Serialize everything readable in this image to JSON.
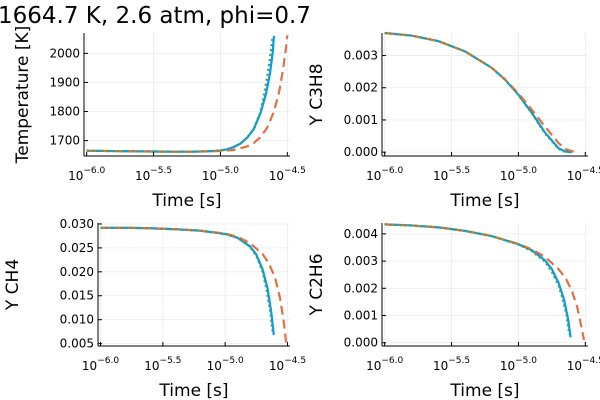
{
  "title": "1664.7 K, 2.6 atm, phi=0.7",
  "colors": {
    "series_1": "#009AFA",
    "series_2": "#E26F46",
    "series_3": "#3EA44E",
    "grid": "#ebebeb"
  },
  "chart_data": [
    {
      "type": "line",
      "xlabel": "Time [s]",
      "ylabel": "Temperature [K]",
      "xscale": "log10",
      "xlim": [
        -6.02,
        -4.48
      ],
      "ylim": [
        1647,
        2070
      ],
      "xticks": [
        {
          "base": "10",
          "exp": "−6.0"
        },
        {
          "base": "10",
          "exp": "−5.5"
        },
        {
          "base": "10",
          "exp": "−5.0"
        },
        {
          "base": "10",
          "exp": "−4.5"
        }
      ],
      "xtick_values": [
        -6.0,
        -5.5,
        -5.0,
        -4.5
      ],
      "yticks": [
        "1700",
        "1800",
        "1900",
        "2000"
      ],
      "ytick_values": [
        1700,
        1800,
        1900,
        2000
      ],
      "legend": "none",
      "grid": true,
      "series": [
        {
          "style": "solid",
          "x": [
            -6.0,
            -5.8,
            -5.6,
            -5.4,
            -5.2,
            -5.1,
            -5.0,
            -4.95,
            -4.9,
            -4.85,
            -4.8,
            -4.75,
            -4.7,
            -4.66,
            -4.63,
            -4.61,
            -4.6
          ],
          "y": [
            1665,
            1664,
            1663,
            1662,
            1662,
            1663,
            1666,
            1670,
            1678,
            1690,
            1710,
            1740,
            1795,
            1860,
            1930,
            2000,
            2060
          ]
        },
        {
          "style": "dash",
          "x": [
            -6.0,
            -5.8,
            -5.6,
            -5.4,
            -5.2,
            -5.0,
            -4.9,
            -4.8,
            -4.75,
            -4.7,
            -4.65,
            -4.6,
            -4.56,
            -4.53,
            -4.51,
            -4.5
          ],
          "y": [
            1665,
            1664,
            1663,
            1662,
            1662,
            1664,
            1668,
            1680,
            1692,
            1712,
            1745,
            1800,
            1870,
            1950,
            2020,
            2062
          ]
        },
        {
          "style": "dot",
          "x": [
            -6.0,
            -5.8,
            -5.6,
            -5.4,
            -5.2,
            -5.1,
            -5.0,
            -4.95,
            -4.9,
            -4.85,
            -4.8,
            -4.75,
            -4.7,
            -4.67,
            -4.64,
            -4.62,
            -4.61
          ],
          "y": [
            1665,
            1664,
            1663,
            1662,
            1662,
            1663,
            1666,
            1670,
            1678,
            1690,
            1710,
            1742,
            1800,
            1870,
            1950,
            2020,
            2058
          ]
        }
      ]
    },
    {
      "type": "line",
      "xlabel": "Time [s]",
      "ylabel": "Y C3H8",
      "xscale": "log10",
      "xlim": [
        -6.02,
        -4.48
      ],
      "ylim": [
        -0.00012,
        0.0037
      ],
      "xticks": [
        {
          "base": "10",
          "exp": "−6.0"
        },
        {
          "base": "10",
          "exp": "−5.5"
        },
        {
          "base": "10",
          "exp": "−5.0"
        },
        {
          "base": "10",
          "exp": "−4.5"
        }
      ],
      "xtick_values": [
        -6.0,
        -5.5,
        -5.0,
        -4.5
      ],
      "yticks": [
        "0.000",
        "0.001",
        "0.002",
        "0.003"
      ],
      "ytick_values": [
        0.0,
        0.001,
        0.002,
        0.003
      ],
      "legend": "none",
      "grid": true,
      "series": [
        {
          "style": "solid",
          "x": [
            -6.0,
            -5.8,
            -5.6,
            -5.4,
            -5.2,
            -5.1,
            -5.0,
            -4.9,
            -4.8,
            -4.7,
            -4.65,
            -4.6
          ],
          "y": [
            0.0037,
            0.00362,
            0.00345,
            0.00313,
            0.00262,
            0.00225,
            0.00178,
            0.00122,
            0.0006,
            0.00012,
            2e-05,
            0.0
          ]
        },
        {
          "style": "dash",
          "x": [
            -6.0,
            -5.8,
            -5.6,
            -5.4,
            -5.2,
            -5.1,
            -5.0,
            -4.9,
            -4.8,
            -4.7,
            -4.65,
            -4.6,
            -4.55
          ],
          "y": [
            0.0037,
            0.00362,
            0.00345,
            0.00313,
            0.00262,
            0.00226,
            0.00182,
            0.00132,
            0.00078,
            0.00028,
            0.0001,
            3e-05,
            0.0
          ]
        },
        {
          "style": "dot",
          "x": [
            -6.0,
            -5.8,
            -5.6,
            -5.4,
            -5.2,
            -5.1,
            -5.0,
            -4.9,
            -4.8,
            -4.7,
            -4.65,
            -4.62
          ],
          "y": [
            0.0037,
            0.00362,
            0.00345,
            0.00313,
            0.00262,
            0.00225,
            0.00178,
            0.0012,
            0.00057,
            0.0001,
            1e-05,
            0.0
          ]
        }
      ]
    },
    {
      "type": "line",
      "xlabel": "Time [s]",
      "ylabel": "Y CH4",
      "xscale": "log10",
      "xlim": [
        -6.02,
        -4.48
      ],
      "ylim": [
        0.0045,
        0.0302
      ],
      "xticks": [
        {
          "base": "10",
          "exp": "−6.0"
        },
        {
          "base": "10",
          "exp": "−5.5"
        },
        {
          "base": "10",
          "exp": "−5.0"
        },
        {
          "base": "10",
          "exp": "−4.5"
        }
      ],
      "xtick_values": [
        -6.0,
        -5.5,
        -5.0,
        -4.5
      ],
      "yticks": [
        "0.005",
        "0.010",
        "0.015",
        "0.020",
        "0.025",
        "0.030"
      ],
      "ytick_values": [
        0.005,
        0.01,
        0.015,
        0.02,
        0.025,
        0.03
      ],
      "legend": "none",
      "grid": true,
      "series": [
        {
          "style": "solid",
          "x": [
            -6.0,
            -5.8,
            -5.6,
            -5.4,
            -5.2,
            -5.0,
            -4.9,
            -4.8,
            -4.75,
            -4.7,
            -4.66,
            -4.63,
            -4.61
          ],
          "y": [
            0.0292,
            0.0292,
            0.0291,
            0.0289,
            0.0286,
            0.0279,
            0.0271,
            0.0253,
            0.0236,
            0.0205,
            0.0165,
            0.0115,
            0.0068
          ]
        },
        {
          "style": "dash",
          "x": [
            -6.0,
            -5.8,
            -5.6,
            -5.4,
            -5.2,
            -5.0,
            -4.9,
            -4.8,
            -4.7,
            -4.65,
            -4.6,
            -4.56,
            -4.53,
            -4.51
          ],
          "y": [
            0.0292,
            0.0292,
            0.0291,
            0.0289,
            0.0286,
            0.028,
            0.0273,
            0.026,
            0.0237,
            0.0218,
            0.0188,
            0.0145,
            0.0095,
            0.005
          ]
        },
        {
          "style": "dot",
          "x": [
            -6.0,
            -5.8,
            -5.6,
            -5.4,
            -5.2,
            -5.0,
            -4.9,
            -4.8,
            -4.75,
            -4.7,
            -4.67,
            -4.64,
            -4.62
          ],
          "y": [
            0.0292,
            0.0292,
            0.0291,
            0.0289,
            0.0286,
            0.0279,
            0.0271,
            0.0252,
            0.0233,
            0.02,
            0.0165,
            0.012,
            0.0075
          ]
        }
      ]
    },
    {
      "type": "line",
      "xlabel": "Time [s]",
      "ylabel": "Y C2H6",
      "xscale": "log10",
      "xlim": [
        -6.02,
        -4.48
      ],
      "ylim": [
        -0.00012,
        0.0044
      ],
      "xticks": [
        {
          "base": "10",
          "exp": "−6.0"
        },
        {
          "base": "10",
          "exp": "−5.5"
        },
        {
          "base": "10",
          "exp": "−5.0"
        },
        {
          "base": "10",
          "exp": "−4.5"
        }
      ],
      "xtick_values": [
        -6.0,
        -5.5,
        -5.0,
        -4.5
      ],
      "yticks": [
        "0.000",
        "0.001",
        "0.002",
        "0.003",
        "0.004"
      ],
      "ytick_values": [
        0.0,
        0.001,
        0.002,
        0.003,
        0.004
      ],
      "legend": "none",
      "grid": true,
      "series": [
        {
          "style": "solid",
          "x": [
            -6.0,
            -5.8,
            -5.6,
            -5.4,
            -5.2,
            -5.0,
            -4.9,
            -4.8,
            -4.75,
            -4.7,
            -4.66,
            -4.63,
            -4.61
          ],
          "y": [
            0.00435,
            0.00431,
            0.00424,
            0.00411,
            0.00392,
            0.00362,
            0.0034,
            0.00302,
            0.0027,
            0.0022,
            0.0016,
            0.0009,
            0.0002
          ]
        },
        {
          "style": "dash",
          "x": [
            -6.0,
            -5.8,
            -5.6,
            -5.4,
            -5.2,
            -5.0,
            -4.9,
            -4.8,
            -4.7,
            -4.65,
            -4.6,
            -4.56,
            -4.53,
            -4.51
          ],
          "y": [
            0.00435,
            0.00431,
            0.00424,
            0.00411,
            0.00392,
            0.00363,
            0.00343,
            0.00315,
            0.0027,
            0.0024,
            0.0019,
            0.0013,
            0.0006,
            0.0001
          ]
        },
        {
          "style": "dot",
          "x": [
            -6.0,
            -5.8,
            -5.6,
            -5.4,
            -5.2,
            -5.0,
            -4.9,
            -4.8,
            -4.75,
            -4.7,
            -4.67,
            -4.64,
            -4.62
          ],
          "y": [
            0.00435,
            0.00431,
            0.00424,
            0.00411,
            0.00392,
            0.00361,
            0.00337,
            0.00297,
            0.0026,
            0.0021,
            0.0016,
            0.001,
            0.0003
          ]
        }
      ]
    }
  ]
}
